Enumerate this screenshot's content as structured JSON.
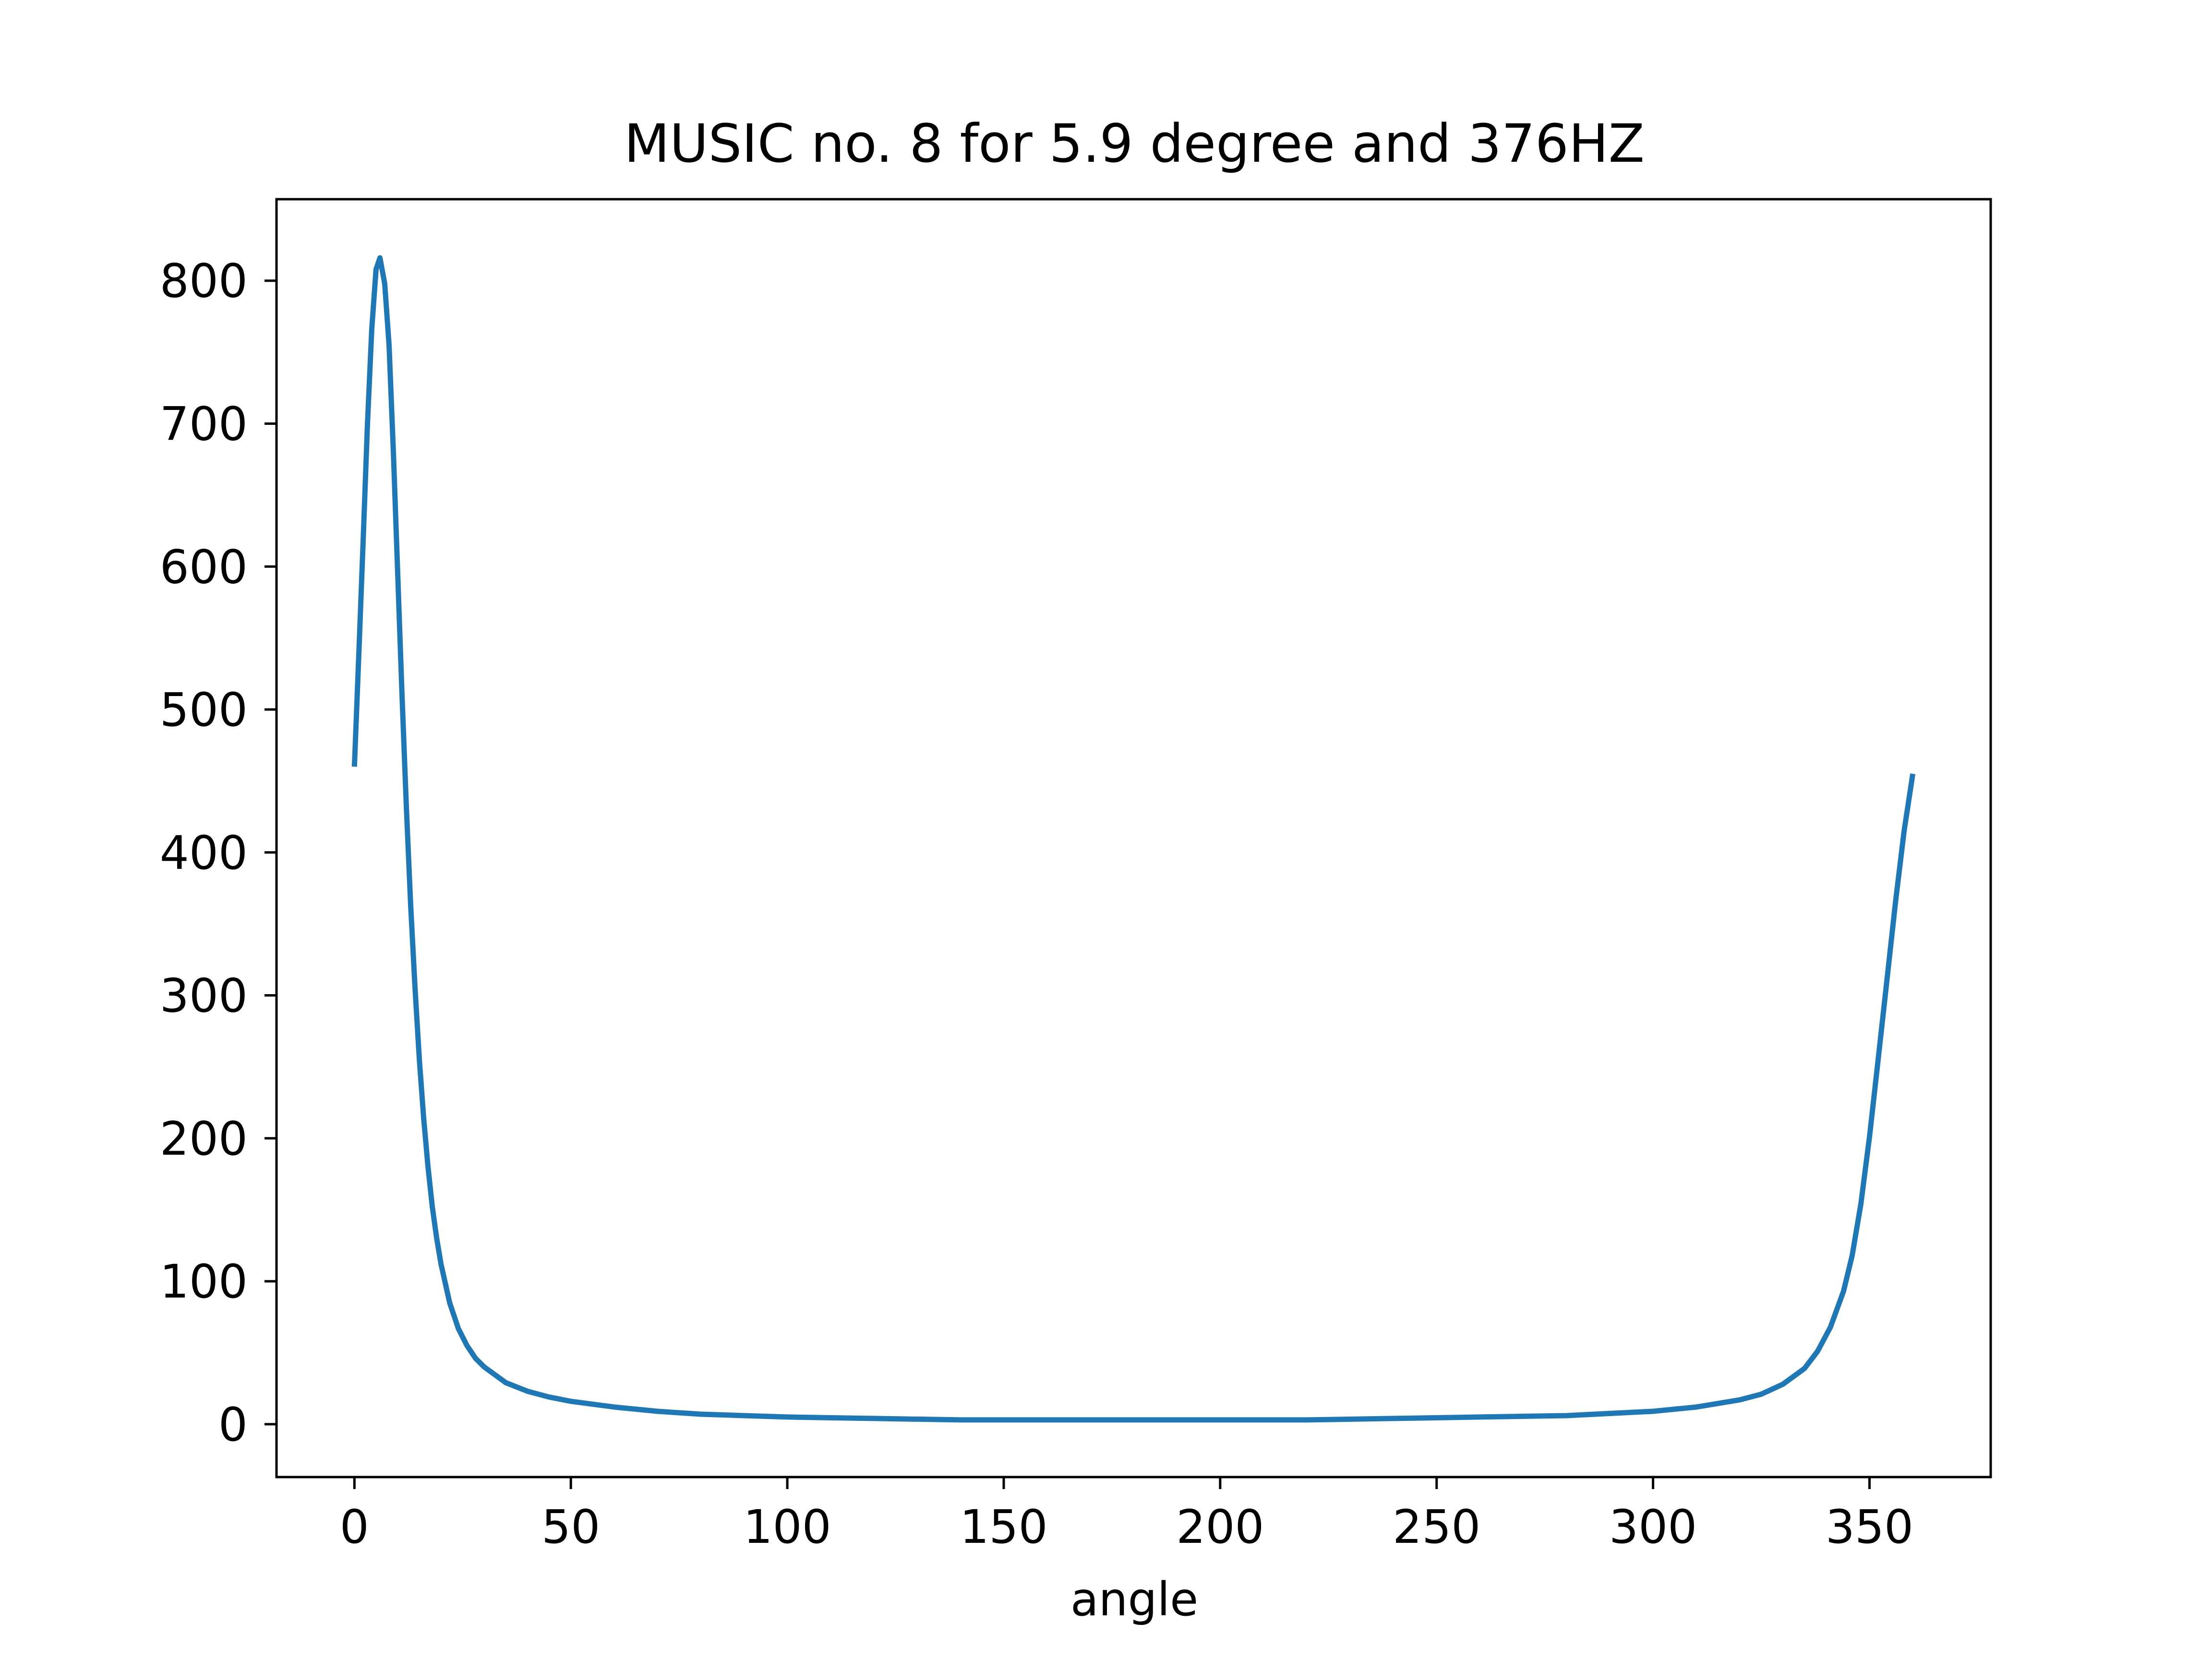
{
  "chart_data": {
    "type": "line",
    "title": "MUSIC no. 8 for 5.9 degree and 376HZ",
    "xlabel": "angle",
    "ylabel": "",
    "xlim": [
      -18,
      378
    ],
    "ylim": [
      -37,
      857
    ],
    "xticks": [
      0,
      50,
      100,
      150,
      200,
      250,
      300,
      350
    ],
    "yticks": [
      0,
      100,
      200,
      300,
      400,
      500,
      600,
      700,
      800
    ],
    "grid": false,
    "legend": "none",
    "line_color": "#1f77b4",
    "series": [
      {
        "x": [
          0,
          1,
          2,
          3,
          4,
          5,
          5.9,
          7,
          8,
          9,
          10,
          11,
          12,
          13,
          14,
          15,
          16,
          17,
          18,
          19,
          20,
          22,
          24,
          26,
          28,
          30,
          35,
          40,
          45,
          50,
          60,
          70,
          80,
          90,
          100,
          120,
          140,
          160,
          180,
          200,
          220,
          240,
          260,
          280,
          300,
          310,
          320,
          325,
          330,
          335,
          338,
          341,
          344,
          346,
          348,
          350,
          352,
          354,
          356,
          358,
          360
        ],
        "y": [
          460,
          537,
          617,
          699,
          766,
          808,
          816,
          798,
          755,
          680,
          595,
          510,
          432,
          363,
          305,
          255,
          214,
          180,
          152,
          130,
          112,
          85,
          67,
          55,
          46,
          40,
          29,
          23,
          19,
          16,
          12,
          9,
          7,
          6,
          5,
          4,
          3,
          3,
          3,
          3,
          3,
          4,
          5,
          6,
          9,
          12,
          17,
          21,
          28,
          39,
          51,
          68,
          93,
          118,
          154,
          201,
          255,
          310,
          365,
          415,
          455
        ]
      }
    ]
  }
}
